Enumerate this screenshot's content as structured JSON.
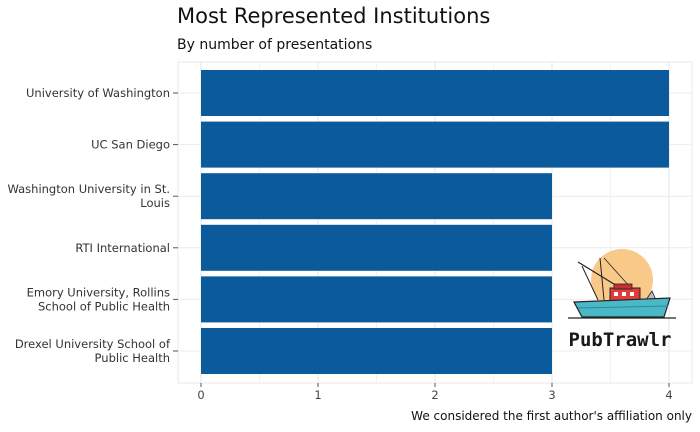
{
  "chart_data": {
    "type": "bar",
    "orientation": "horizontal",
    "title": "Most Represented Institutions",
    "subtitle": "By number of presentations",
    "caption": "We considered the first author's affiliation only",
    "categories": [
      [
        "University of Washington"
      ],
      [
        "UC San Diego"
      ],
      [
        "Washington University in St.",
        "Louis"
      ],
      [
        "RTI International"
      ],
      [
        "Emory University, Rollins",
        "School of Public Health"
      ],
      [
        "Drexel University School of",
        "Public Health"
      ]
    ],
    "values": [
      4,
      4,
      3,
      3,
      3,
      3
    ],
    "xlim": [
      0,
      4
    ],
    "xticks": [
      "0",
      "1",
      "2",
      "3",
      "4"
    ],
    "grid": true,
    "bar_color": "#0a5a9c"
  },
  "logo": {
    "text": "PubTrawlr",
    "icon": "fishing-boat-icon",
    "sun_color": "#f9c98a",
    "boat_color": "#e23b3b",
    "hull_color": "#4bb8c8"
  }
}
